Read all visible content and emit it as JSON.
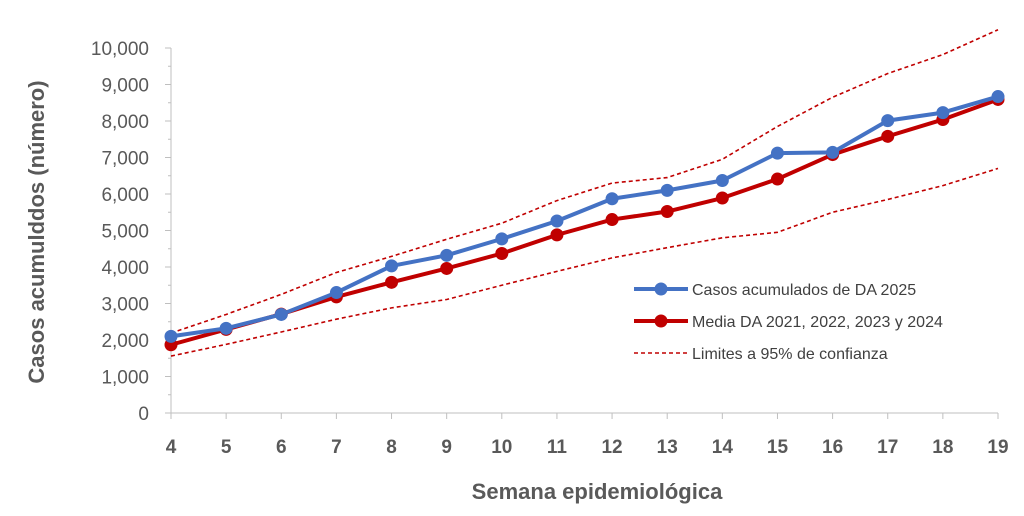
{
  "chart_data": {
    "type": "line",
    "title": "",
    "xlabel": "Semana epidemiológica",
    "ylabel": "Casos acumulddos (número)",
    "x": [
      4,
      5,
      6,
      7,
      8,
      9,
      10,
      11,
      12,
      13,
      14,
      15,
      16,
      17,
      18,
      19
    ],
    "ylim": [
      0,
      10000
    ],
    "yticks": [
      0,
      1000,
      2000,
      3000,
      4000,
      5000,
      6000,
      7000,
      8000,
      9000,
      10000
    ],
    "ytick_labels": [
      "0",
      "1,000",
      "2,000",
      "3,000",
      "4,000",
      "5,000",
      "6,000",
      "7,000",
      "8,000",
      "9,000",
      "10,000"
    ],
    "grid": false,
    "legend_position": "lower-right",
    "series": [
      {
        "name": "Casos acumulados de DA 2025",
        "color": "#4472C4",
        "style": "line-markers",
        "values": [
          2100,
          2320,
          2700,
          3300,
          4030,
          4320,
          4770,
          5260,
          5870,
          6100,
          6370,
          7120,
          7140,
          8010,
          8230,
          8670
        ]
      },
      {
        "name": "Media DA 2021, 2022, 2023 y 2024",
        "color": "#C00000",
        "style": "line-markers",
        "values": [
          1870,
          2290,
          2710,
          3180,
          3580,
          3960,
          4370,
          4880,
          5300,
          5520,
          5890,
          6410,
          7080,
          7580,
          8040,
          8590
        ]
      },
      {
        "name": "Limites a 95% de confianza",
        "color": "#C00000",
        "style": "dashed",
        "values": [
          2190,
          2700,
          3250,
          3850,
          4290,
          4760,
          5200,
          5820,
          6300,
          6450,
          6950,
          7850,
          8650,
          9300,
          9820,
          10500
        ]
      },
      {
        "name": "",
        "color": "#C00000",
        "style": "dashed",
        "values": [
          1560,
          1880,
          2220,
          2570,
          2880,
          3110,
          3500,
          3880,
          4250,
          4530,
          4800,
          4950,
          5500,
          5850,
          6230,
          6700
        ]
      }
    ]
  }
}
